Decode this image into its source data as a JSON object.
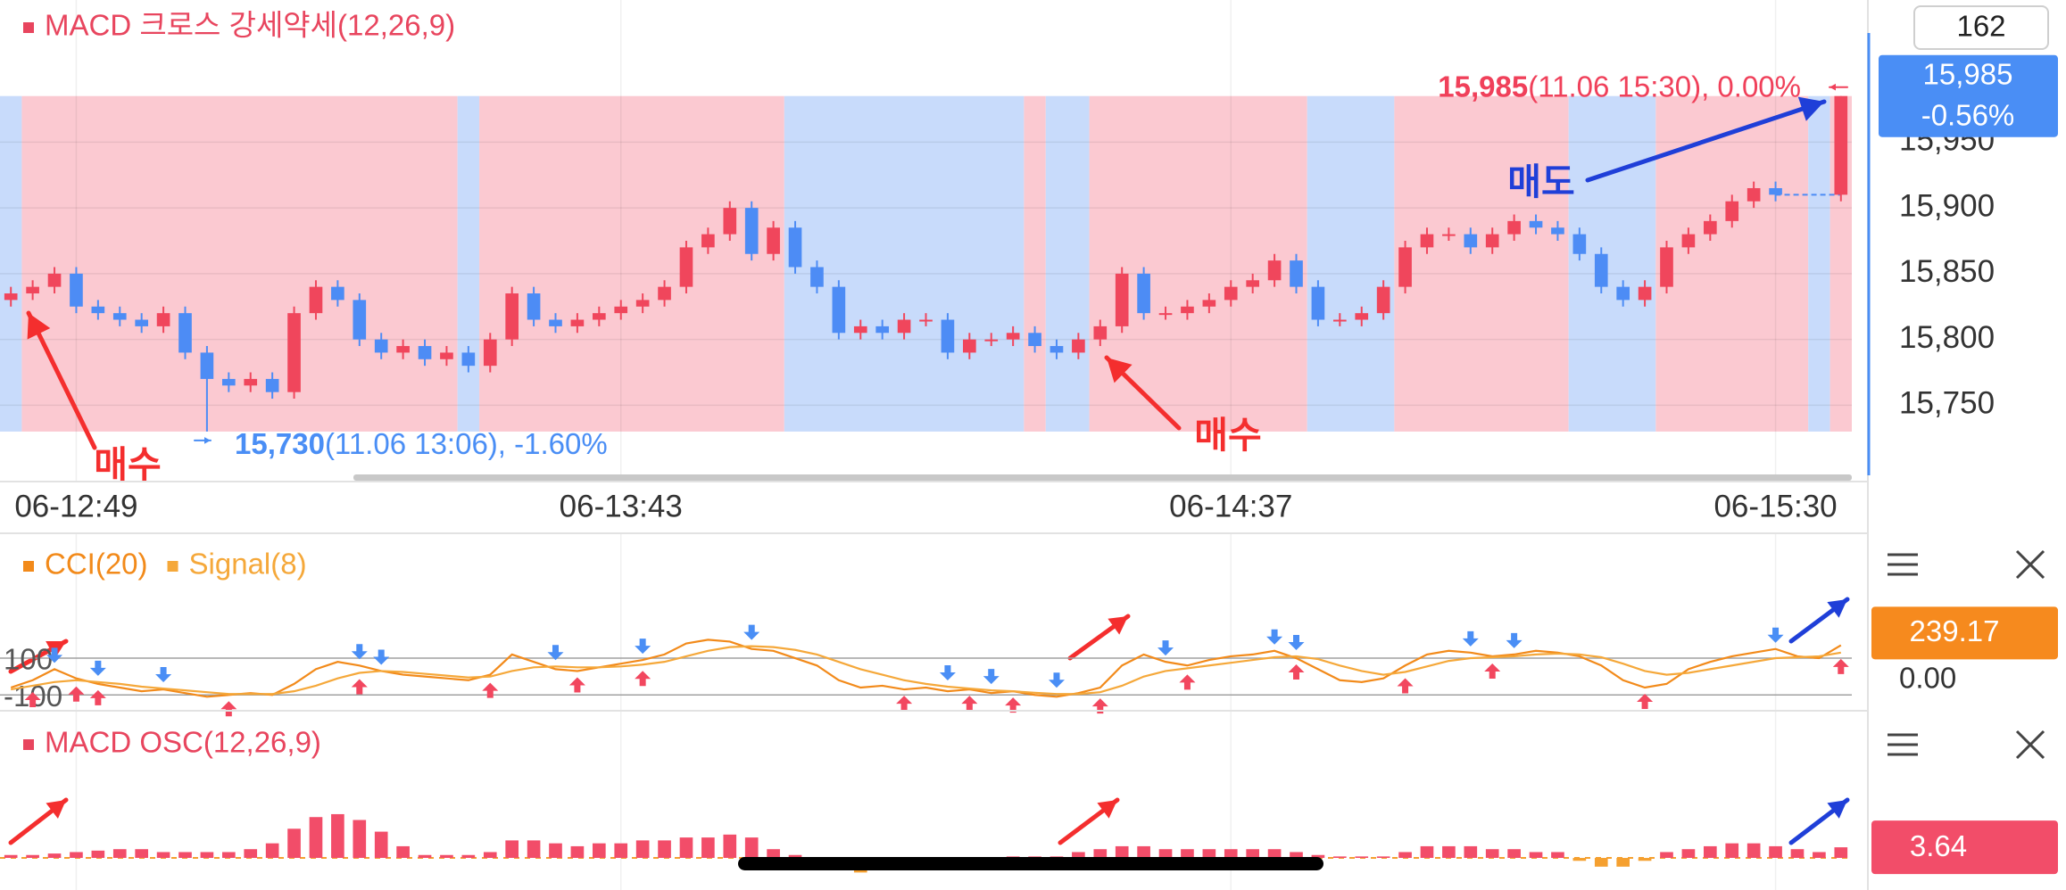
{
  "chart_data": [
    {
      "type": "candlestick",
      "title": "MACD 크로스 강세약세(12,26,9)",
      "title_color": "#e8455e",
      "categories": [
        null,
        null,
        null,
        "06-12:49",
        null,
        null,
        null,
        null,
        null,
        null,
        null,
        null,
        null,
        null,
        null,
        null,
        null,
        null,
        null,
        null,
        null,
        null,
        null,
        null,
        null,
        null,
        null,
        null,
        "06-13:43",
        null,
        null,
        null,
        null,
        null,
        null,
        null,
        null,
        null,
        null,
        null,
        null,
        null,
        null,
        null,
        null,
        null,
        null,
        null,
        null,
        null,
        null,
        null,
        null,
        null,
        null,
        null,
        "06-14:37",
        null,
        null,
        null,
        null,
        null,
        null,
        null,
        null,
        null,
        null,
        null,
        null,
        null,
        null,
        null,
        null,
        null,
        null,
        null,
        null,
        null,
        null,
        null,
        null,
        "06-15:30",
        null,
        null,
        null
      ],
      "open": [
        15830,
        15835,
        15840,
        15850,
        15825,
        15820,
        15815,
        15810,
        15820,
        15790,
        15770,
        15765,
        15770,
        15760,
        15820,
        15840,
        15830,
        15800,
        15790,
        15795,
        15785,
        15790,
        15780,
        15800,
        15835,
        15815,
        15810,
        15815,
        15820,
        15825,
        15830,
        15840,
        15870,
        15880,
        15900,
        15865,
        15885,
        15855,
        15840,
        15805,
        15810,
        15805,
        15815,
        15815,
        15790,
        15800,
        15800,
        15805,
        15795,
        15790,
        15800,
        15810,
        15850,
        15820,
        15820,
        15825,
        15830,
        15840,
        15845,
        15860,
        15840,
        15815,
        15815,
        15820,
        15840,
        15870,
        15880,
        15880,
        15870,
        15880,
        15890,
        15885,
        15880,
        15865,
        15840,
        15830,
        15840,
        15870,
        15880,
        15890,
        15905,
        15915,
        null,
        null,
        15910
      ],
      "high": [
        15840,
        15845,
        15855,
        15855,
        15830,
        15825,
        15820,
        15825,
        15825,
        15795,
        15775,
        15775,
        15775,
        15825,
        15845,
        15845,
        15835,
        15805,
        15800,
        15800,
        15795,
        15795,
        15805,
        15840,
        15840,
        15820,
        15820,
        15825,
        15830,
        15835,
        15845,
        15875,
        15885,
        15905,
        15905,
        15890,
        15890,
        15860,
        15845,
        15815,
        15815,
        15820,
        15820,
        15820,
        15805,
        15805,
        15810,
        15810,
        15800,
        15805,
        15815,
        15855,
        15855,
        15825,
        15830,
        15835,
        15845,
        15850,
        15865,
        15865,
        15845,
        15820,
        15825,
        15845,
        15875,
        15885,
        15885,
        15885,
        15885,
        15895,
        15895,
        15890,
        15885,
        15870,
        15845,
        15845,
        15875,
        15885,
        15895,
        15910,
        15920,
        15920,
        null,
        null,
        15985
      ],
      "low": [
        15825,
        15830,
        15835,
        15820,
        15815,
        15810,
        15805,
        15805,
        15785,
        15730,
        15760,
        15760,
        15755,
        15755,
        15815,
        15825,
        15795,
        15785,
        15785,
        15780,
        15780,
        15775,
        15775,
        15795,
        15810,
        15805,
        15805,
        15810,
        15815,
        15820,
        15825,
        15835,
        15865,
        15875,
        15860,
        15860,
        15850,
        15835,
        15800,
        15800,
        15800,
        15800,
        15810,
        15785,
        15785,
        15795,
        15795,
        15790,
        15785,
        15785,
        15795,
        15805,
        15815,
        15815,
        15815,
        15820,
        15825,
        15835,
        15840,
        15835,
        15810,
        15810,
        15810,
        15815,
        15835,
        15865,
        15875,
        15865,
        15865,
        15875,
        15880,
        15875,
        15860,
        15835,
        15825,
        15825,
        15835,
        15865,
        15875,
        15885,
        15900,
        15905,
        null,
        null,
        15905
      ],
      "close": [
        15835,
        15840,
        15850,
        15825,
        15820,
        15815,
        15810,
        15820,
        15790,
        15770,
        15765,
        15770,
        15760,
        15820,
        15840,
        15830,
        15800,
        15790,
        15795,
        15785,
        15790,
        15780,
        15800,
        15835,
        15815,
        15810,
        15815,
        15820,
        15825,
        15830,
        15840,
        15870,
        15880,
        15900,
        15865,
        15885,
        15855,
        15840,
        15805,
        15810,
        15805,
        15815,
        15815,
        15790,
        15800,
        15800,
        15805,
        15795,
        15790,
        15800,
        15810,
        15850,
        15820,
        15820,
        15825,
        15830,
        15840,
        15845,
        15860,
        15840,
        15815,
        15815,
        15820,
        15840,
        15870,
        15880,
        15880,
        15870,
        15880,
        15890,
        15885,
        15880,
        15865,
        15840,
        15830,
        15840,
        15870,
        15880,
        15890,
        15905,
        15915,
        15910,
        null,
        null,
        15985
      ],
      "colors": {
        "up": "#f0465c",
        "down": "#4d8cf5"
      },
      "ylim": [
        15692,
        16058
      ],
      "yticks": [
        {
          "value": 15750,
          "label": "15,750"
        },
        {
          "value": 15800,
          "label": "15,800"
        },
        {
          "value": 15850,
          "label": "15,850"
        },
        {
          "value": 15900,
          "label": "15,900"
        },
        {
          "value": 15950,
          "label": "15,950"
        }
      ],
      "grid": true,
      "regions": [
        {
          "from": 0,
          "to": 0,
          "color": "#c8dbfb"
        },
        {
          "from": 1,
          "to": 20,
          "color": "#fbc9d1"
        },
        {
          "from": 21,
          "to": 21,
          "color": "#c8dbfb"
        },
        {
          "from": 22,
          "to": 35,
          "color": "#fbc9d1"
        },
        {
          "from": 36,
          "to": 46,
          "color": "#c8dbfb"
        },
        {
          "from": 47,
          "to": 47,
          "color": "#fbc9d1"
        },
        {
          "from": 48,
          "to": 49,
          "color": "#c8dbfb"
        },
        {
          "from": 50,
          "to": 59,
          "color": "#fbc9d1"
        },
        {
          "from": 60,
          "to": 63,
          "color": "#c8dbfb"
        },
        {
          "from": 64,
          "to": 71,
          "color": "#fbc9d1"
        },
        {
          "from": 72,
          "to": 75,
          "color": "#c8dbfb"
        },
        {
          "from": 76,
          "to": 82,
          "color": "#fbc9d1"
        },
        {
          "from": 83,
          "to": 83,
          "color": "#c8dbfb"
        },
        {
          "from": 84,
          "to": 84,
          "color": "#fbc9d1"
        }
      ],
      "annotations": [
        {
          "text": "매수",
          "color": "#f42e2e"
        },
        {
          "text": "매수",
          "color": "#f42e2e"
        },
        {
          "text": "매도",
          "color": "#1f3fd8"
        }
      ],
      "max_label": {
        "price": {
          "value": 15985,
          "label": "15,985"
        },
        "text": "(11.06 15:30), 0.00%",
        "color": "#f0405a"
      },
      "min_label": {
        "price": {
          "value": 15730,
          "label": "15,730"
        },
        "text": "(11.06 13:06), -1.60%",
        "color": "#4a8ef5"
      },
      "visible_count": 162,
      "price_box": {
        "price": {
          "value": 15985,
          "label": "15,985"
        },
        "change": "-0.56%",
        "color": "#4a8ef5"
      }
    },
    {
      "type": "line",
      "series": [
        {
          "name": "CCI(20)",
          "color": "#f28a1a",
          "values": [
            -60,
            -20,
            40,
            -10,
            -40,
            -60,
            -80,
            -70,
            -90,
            -110,
            -100,
            -90,
            -100,
            -40,
            40,
            80,
            60,
            30,
            10,
            0,
            -10,
            -20,
            10,
            120,
            80,
            40,
            30,
            50,
            70,
            90,
            120,
            180,
            200,
            190,
            150,
            140,
            100,
            60,
            -20,
            -60,
            -50,
            -70,
            -60,
            -80,
            -70,
            -90,
            -80,
            -100,
            -110,
            -90,
            -60,
            60,
            120,
            80,
            60,
            90,
            110,
            120,
            140,
            100,
            40,
            -20,
            -30,
            -10,
            60,
            120,
            140,
            130,
            110,
            120,
            140,
            130,
            110,
            60,
            -20,
            -60,
            -40,
            40,
            80,
            110,
            130,
            150,
            110,
            100,
            170
          ]
        },
        {
          "name": "Signal(8)",
          "color": "#f5a83a",
          "values": [
            -70,
            -50,
            -30,
            -20,
            -30,
            -40,
            -55,
            -65,
            -75,
            -85,
            -95,
            -95,
            -95,
            -80,
            -50,
            -10,
            20,
            30,
            25,
            15,
            5,
            -5,
            0,
            30,
            50,
            55,
            50,
            50,
            55,
            65,
            80,
            110,
            140,
            160,
            165,
            160,
            145,
            120,
            80,
            40,
            10,
            -20,
            -40,
            -55,
            -65,
            -75,
            -80,
            -88,
            -95,
            -95,
            -85,
            -50,
            0,
            30,
            45,
            60,
            75,
            90,
            105,
            110,
            95,
            60,
            30,
            10,
            25,
            55,
            85,
            100,
            105,
            110,
            120,
            125,
            120,
            105,
            70,
            30,
            10,
            20,
            40,
            60,
            80,
            100,
            105,
            110,
            130
          ]
        }
      ],
      "ylim": [
        -186,
        779
      ],
      "yticks": [
        100,
        -100
      ],
      "buy_signals": [
        1,
        3,
        4,
        10,
        16,
        22,
        26,
        29,
        41,
        44,
        46,
        50,
        54,
        59,
        64,
        68,
        75,
        84
      ],
      "sell_signals": [
        2,
        4,
        7,
        16,
        17,
        25,
        29,
        34,
        43,
        45,
        48,
        53,
        58,
        59,
        67,
        69,
        81
      ],
      "signal_colors": {
        "buy": "#f2475f",
        "sell": "#4a8ef5"
      },
      "value_box": {
        "value": 239.17,
        "color": "#f68a1e"
      },
      "baseline_label": {
        "value": 0,
        "label": "0.00"
      }
    },
    {
      "type": "bar",
      "title": "MACD OSC(12,26,9)",
      "title_color": "#e8455e",
      "values": [
        1,
        1,
        1.5,
        2,
        2.5,
        3,
        3,
        2,
        2,
        2,
        2,
        3,
        5,
        10,
        14,
        15,
        13,
        9,
        4,
        1,
        1,
        1,
        2,
        6,
        6,
        5,
        4,
        5,
        5,
        6,
        6,
        7,
        7,
        8,
        7,
        3,
        1,
        -1,
        -4,
        -5,
        -3,
        -1,
        -0.5,
        -0.5,
        -0.5,
        -0.5,
        0.5,
        0.5,
        0.5,
        2,
        3,
        4,
        4,
        3,
        3,
        3,
        3,
        3,
        3,
        2,
        1,
        0.5,
        0.5,
        0.5,
        2,
        4,
        4,
        4,
        3,
        3,
        2,
        2,
        -1,
        -3,
        -3,
        -1,
        2,
        3,
        4,
        5,
        5,
        4,
        3,
        2,
        3.64
      ],
      "colors": {
        "up": "#f24d69",
        "down": "#f5a030"
      },
      "ylim": [
        -11,
        48
      ],
      "value_box": {
        "value": 3.64,
        "color": "#f24d69"
      }
    }
  ]
}
